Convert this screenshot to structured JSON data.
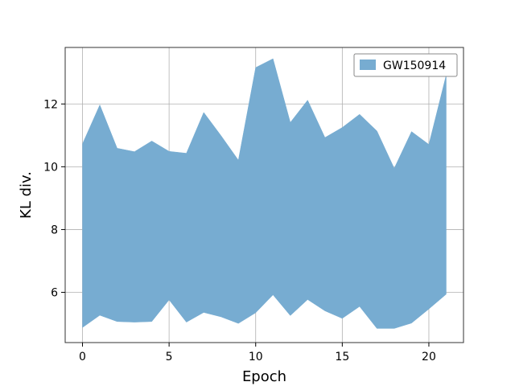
{
  "chart_data": {
    "type": "area",
    "title": "",
    "xlabel": "Epoch",
    "ylabel": "KL div.",
    "xlim": [
      -1,
      22
    ],
    "ylim": [
      4.4,
      13.8
    ],
    "xticks": [
      0,
      5,
      10,
      15,
      20
    ],
    "yticks": [
      6,
      8,
      10,
      12
    ],
    "grid": true,
    "legend_position": "top-right",
    "series": [
      {
        "name": "GW150914",
        "color": "#77acd1",
        "x": [
          0,
          1,
          2,
          3,
          4,
          5,
          6,
          7,
          8,
          9,
          10,
          11,
          12,
          13,
          14,
          15,
          16,
          17,
          18,
          19,
          20,
          21
        ],
        "upper": [
          10.73,
          11.97,
          10.59,
          10.48,
          10.82,
          10.49,
          10.43,
          11.73,
          10.99,
          10.21,
          13.16,
          13.44,
          11.41,
          12.12,
          10.93,
          11.25,
          11.67,
          11.14,
          9.95,
          11.12,
          10.71,
          12.92
        ],
        "lower": [
          4.88,
          5.27,
          5.07,
          5.05,
          5.07,
          5.76,
          5.05,
          5.36,
          5.22,
          5.01,
          5.35,
          5.92,
          5.26,
          5.77,
          5.41,
          5.17,
          5.55,
          4.85,
          4.85,
          5.02,
          5.47,
          5.94
        ]
      }
    ]
  }
}
